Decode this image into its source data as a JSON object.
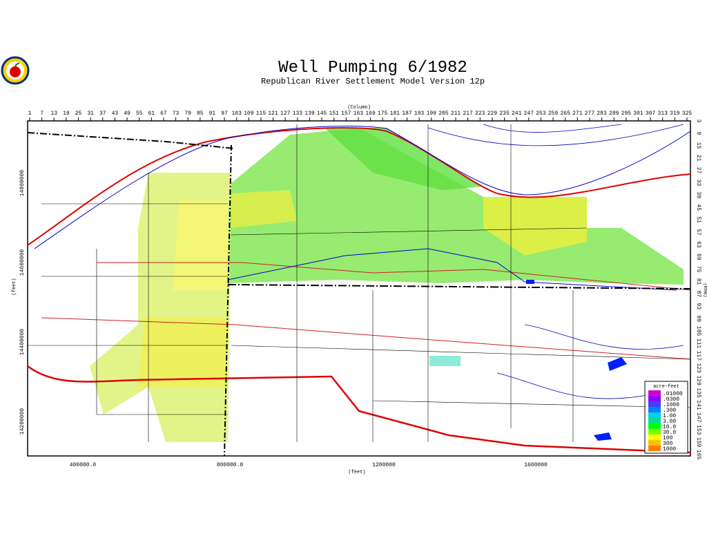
{
  "header": {
    "title": "Well Pumping  6/1982",
    "subtitle": "Republican River Settlement Model Version 12p"
  },
  "map": {
    "column_axis": {
      "label": "(Column)",
      "ticks": [
        "1",
        "7",
        "13",
        "19",
        "25",
        "31",
        "37",
        "43",
        "49",
        "55",
        "61",
        "67",
        "73",
        "79",
        "85",
        "91",
        "97",
        "103",
        "109",
        "115",
        "121",
        "127",
        "133",
        "139",
        "145",
        "151",
        "157",
        "163",
        "169",
        "175",
        "181",
        "187",
        "193",
        "199",
        "205",
        "211",
        "217",
        "223",
        "229",
        "235",
        "241",
        "247",
        "253",
        "259",
        "265",
        "271",
        "277",
        "283",
        "289",
        "295",
        "301",
        "307",
        "313",
        "319",
        "325"
      ]
    },
    "row_axis": {
      "label": "(Row)",
      "ticks": [
        "3",
        "9",
        "15",
        "21",
        "27",
        "33",
        "39",
        "45",
        "51",
        "57",
        "63",
        "69",
        "75",
        "81",
        "87",
        "93",
        "99",
        "105",
        "111",
        "117",
        "123",
        "129",
        "135",
        "141",
        "147",
        "153",
        "159",
        "165"
      ]
    },
    "x_feet_axis": {
      "label": "(feet)",
      "ticks": [
        "400000.0",
        "800000.0",
        "1200000",
        "1600000"
      ]
    },
    "y_feet_axis": {
      "label": "(feet)",
      "ticks": [
        "14800000",
        "14600000",
        "14400000",
        "14200000"
      ]
    },
    "legend": {
      "title": "acre-feet",
      "items": [
        {
          "label": ".01000",
          "color": "#d000d0"
        },
        {
          "label": ".0300",
          "color": "#9000ff"
        },
        {
          "label": ".1000",
          "color": "#4040ff"
        },
        {
          "label": ".300",
          "color": "#0080ff"
        },
        {
          "label": "1.00",
          "color": "#00d0e0"
        },
        {
          "label": "3.00",
          "color": "#00e090"
        },
        {
          "label": "10.0",
          "color": "#00ff00"
        },
        {
          "label": "30.0",
          "color": "#80ff00"
        },
        {
          "label": "100",
          "color": "#ffff00"
        },
        {
          "label": "300",
          "color": "#ffc000"
        },
        {
          "label": "1000",
          "color": "#ff8000"
        }
      ]
    }
  }
}
